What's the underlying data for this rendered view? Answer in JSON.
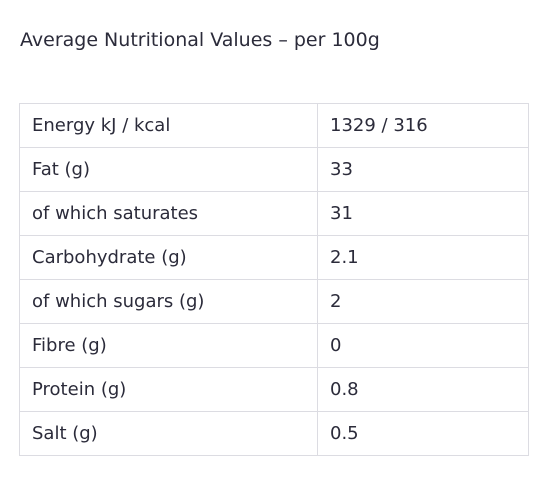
{
  "heading": "Average Nutritional Values – per 100g",
  "rows": [
    {
      "label": "Energy kJ / kcal",
      "value": "1329 / 316"
    },
    {
      "label": "Fat (g)",
      "value": "33"
    },
    {
      "label": "of which saturates",
      "value": "31"
    },
    {
      "label": "Carbohydrate (g)",
      "value": "2.1"
    },
    {
      "label": "of which sugars (g)",
      "value": "2"
    },
    {
      "label": "Fibre (g)",
      "value": "0"
    },
    {
      "label": "Protein (g)",
      "value": "0.8"
    },
    {
      "label": "Salt (g)",
      "value": "0.5"
    }
  ]
}
